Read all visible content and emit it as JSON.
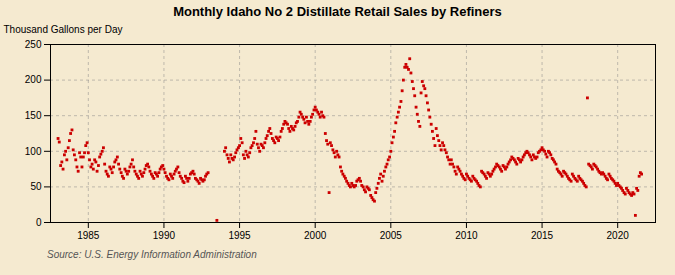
{
  "chart_data": {
    "type": "scatter",
    "title": "Monthly Idaho No 2 Distillate Retail Sales by Refiners",
    "y_label": "Thousand Gallons per Day",
    "annotation": "Source: U.S. Energy Information Administration",
    "color": "#cc0000",
    "marker": "square",
    "grid": true,
    "xlim": [
      1982.5,
      2022.5
    ],
    "xticks": [
      1985,
      1990,
      1995,
      2000,
      2005,
      2010,
      2015,
      2020
    ],
    "ylim": [
      0,
      250
    ],
    "yticks": [
      0,
      50,
      100,
      150,
      200,
      250
    ],
    "x": [
      1983.0,
      1983.08,
      1983.17,
      1983.25,
      1983.33,
      1983.42,
      1983.5,
      1983.58,
      1983.67,
      1983.75,
      1983.83,
      1983.92,
      1984.0,
      1984.08,
      1984.17,
      1984.25,
      1984.33,
      1984.42,
      1984.5,
      1984.58,
      1984.67,
      1984.75,
      1984.83,
      1984.92,
      1985.0,
      1985.08,
      1985.17,
      1985.25,
      1985.33,
      1985.42,
      1985.5,
      1985.58,
      1985.67,
      1985.75,
      1985.83,
      1985.92,
      1986.0,
      1986.08,
      1986.17,
      1986.25,
      1986.33,
      1986.42,
      1986.5,
      1986.58,
      1986.67,
      1986.75,
      1986.83,
      1986.92,
      1987.0,
      1987.08,
      1987.17,
      1987.25,
      1987.33,
      1987.42,
      1987.5,
      1987.58,
      1987.67,
      1987.75,
      1987.83,
      1987.92,
      1988.0,
      1988.08,
      1988.17,
      1988.25,
      1988.33,
      1988.42,
      1988.5,
      1988.58,
      1988.67,
      1988.75,
      1988.83,
      1988.92,
      1989.0,
      1989.08,
      1989.17,
      1989.25,
      1989.33,
      1989.42,
      1989.5,
      1989.58,
      1989.67,
      1989.75,
      1989.83,
      1989.92,
      1990.0,
      1990.08,
      1990.17,
      1990.25,
      1990.33,
      1990.42,
      1990.5,
      1990.58,
      1990.67,
      1990.75,
      1990.83,
      1990.92,
      1991.0,
      1991.08,
      1991.17,
      1991.25,
      1991.33,
      1991.42,
      1991.5,
      1991.58,
      1991.67,
      1991.75,
      1991.83,
      1991.92,
      1992.0,
      1992.08,
      1992.17,
      1992.25,
      1992.33,
      1992.42,
      1992.5,
      1992.58,
      1992.67,
      1992.75,
      1992.83,
      1992.92,
      1993.5,
      1994.0,
      1994.08,
      1994.17,
      1994.25,
      1994.33,
      1994.42,
      1994.5,
      1994.58,
      1994.67,
      1994.75,
      1994.83,
      1994.92,
      1995.0,
      1995.08,
      1995.17,
      1995.25,
      1995.33,
      1995.42,
      1995.5,
      1995.58,
      1995.67,
      1995.75,
      1995.83,
      1995.92,
      1996.0,
      1996.08,
      1996.17,
      1996.25,
      1996.33,
      1996.42,
      1996.5,
      1996.58,
      1996.67,
      1996.75,
      1996.83,
      1996.92,
      1997.0,
      1997.08,
      1997.17,
      1997.25,
      1997.33,
      1997.42,
      1997.5,
      1997.58,
      1997.67,
      1997.75,
      1997.83,
      1997.92,
      1998.0,
      1998.08,
      1998.17,
      1998.25,
      1998.33,
      1998.42,
      1998.5,
      1998.58,
      1998.67,
      1998.75,
      1998.83,
      1998.92,
      1999.0,
      1999.08,
      1999.17,
      1999.25,
      1999.33,
      1999.42,
      1999.5,
      1999.58,
      1999.67,
      1999.75,
      1999.83,
      1999.92,
      2000.0,
      2000.08,
      2000.17,
      2000.25,
      2000.33,
      2000.42,
      2000.5,
      2000.58,
      2000.67,
      2000.75,
      2000.83,
      2000.92,
      2001.0,
      2001.08,
      2001.17,
      2001.25,
      2001.33,
      2001.42,
      2001.5,
      2001.58,
      2001.67,
      2001.75,
      2001.83,
      2001.92,
      2002.0,
      2002.08,
      2002.17,
      2002.25,
      2002.33,
      2002.42,
      2002.5,
      2002.58,
      2002.67,
      2002.75,
      2002.83,
      2002.92,
      2003.0,
      2003.08,
      2003.17,
      2003.25,
      2003.33,
      2003.42,
      2003.5,
      2003.58,
      2003.67,
      2003.75,
      2003.83,
      2003.92,
      2004.0,
      2004.08,
      2004.17,
      2004.25,
      2004.33,
      2004.42,
      2004.5,
      2004.58,
      2004.67,
      2004.75,
      2004.83,
      2004.92,
      2005.0,
      2005.08,
      2005.17,
      2005.25,
      2005.33,
      2005.42,
      2005.5,
      2005.58,
      2005.67,
      2005.75,
      2005.83,
      2005.92,
      2006.0,
      2006.08,
      2006.17,
      2006.25,
      2006.33,
      2006.42,
      2006.5,
      2006.58,
      2006.67,
      2006.75,
      2006.83,
      2006.92,
      2007.0,
      2007.08,
      2007.17,
      2007.25,
      2007.33,
      2007.42,
      2007.5,
      2007.58,
      2007.67,
      2007.75,
      2007.83,
      2007.92,
      2008.0,
      2008.08,
      2008.17,
      2008.25,
      2008.33,
      2008.42,
      2008.5,
      2008.58,
      2008.67,
      2008.75,
      2008.83,
      2008.92,
      2009.0,
      2009.08,
      2009.17,
      2009.25,
      2009.33,
      2009.42,
      2009.5,
      2009.58,
      2009.67,
      2009.75,
      2009.83,
      2009.92,
      2010.0,
      2010.08,
      2010.17,
      2010.25,
      2010.33,
      2010.42,
      2010.5,
      2010.58,
      2010.67,
      2010.75,
      2010.83,
      2010.92,
      2011.0,
      2011.08,
      2011.17,
      2011.25,
      2011.33,
      2011.42,
      2011.5,
      2011.58,
      2011.67,
      2011.75,
      2011.83,
      2011.92,
      2012.0,
      2012.08,
      2012.17,
      2012.25,
      2012.33,
      2012.42,
      2012.5,
      2012.58,
      2012.67,
      2012.75,
      2012.83,
      2012.92,
      2013.0,
      2013.08,
      2013.17,
      2013.25,
      2013.33,
      2013.42,
      2013.5,
      2013.58,
      2013.67,
      2013.75,
      2013.83,
      2013.92,
      2014.0,
      2014.08,
      2014.17,
      2014.25,
      2014.33,
      2014.42,
      2014.5,
      2014.58,
      2014.67,
      2014.75,
      2014.83,
      2014.92,
      2015.0,
      2015.08,
      2015.17,
      2015.25,
      2015.33,
      2015.42,
      2015.5,
      2015.58,
      2015.67,
      2015.75,
      2015.83,
      2015.92,
      2016.0,
      2016.08,
      2016.17,
      2016.25,
      2016.33,
      2016.42,
      2016.5,
      2016.58,
      2016.67,
      2016.75,
      2016.83,
      2016.92,
      2017.0,
      2017.08,
      2017.17,
      2017.25,
      2017.33,
      2017.42,
      2017.5,
      2017.58,
      2017.67,
      2017.75,
      2017.83,
      2017.92,
      2018.0,
      2018.08,
      2018.17,
      2018.25,
      2018.33,
      2018.42,
      2018.5,
      2018.58,
      2018.67,
      2018.75,
      2018.83,
      2018.92,
      2019.0,
      2019.08,
      2019.17,
      2019.25,
      2019.33,
      2019.42,
      2019.5,
      2019.58,
      2019.67,
      2019.75,
      2019.83,
      2019.92,
      2020.0,
      2020.08,
      2020.17,
      2020.25,
      2020.33,
      2020.42,
      2020.5,
      2020.58,
      2020.67,
      2020.75,
      2020.83,
      2020.92,
      2021.0,
      2021.08,
      2021.17,
      2021.25,
      2021.33,
      2021.42,
      2021.5,
      2021.58
    ],
    "values": [
      118,
      113,
      80,
      85,
      75,
      95,
      100,
      88,
      105,
      115,
      125,
      130,
      102,
      95,
      88,
      78,
      72,
      98,
      92,
      78,
      92,
      98,
      108,
      112,
      98,
      88,
      78,
      82,
      75,
      88,
      85,
      72,
      80,
      92,
      96,
      100,
      105,
      82,
      72,
      68,
      65,
      78,
      75,
      70,
      78,
      85,
      88,
      92,
      82,
      75,
      70,
      65,
      62,
      75,
      72,
      68,
      72,
      78,
      82,
      88,
      78,
      72,
      68,
      65,
      62,
      72,
      68,
      65,
      70,
      75,
      80,
      82,
      78,
      72,
      68,
      65,
      62,
      70,
      68,
      65,
      70,
      75,
      78,
      80,
      75,
      70,
      65,
      62,
      60,
      68,
      65,
      62,
      68,
      72,
      75,
      78,
      70,
      65,
      62,
      58,
      56,
      65,
      62,
      58,
      62,
      68,
      70,
      72,
      68,
      62,
      60,
      58,
      55,
      62,
      60,
      58,
      60,
      65,
      68,
      70,
      3,
      100,
      105,
      95,
      90,
      85,
      95,
      90,
      88,
      92,
      98,
      102,
      105,
      108,
      118,
      112,
      95,
      90,
      100,
      95,
      92,
      98,
      105,
      108,
      112,
      118,
      128,
      110,
      105,
      100,
      110,
      108,
      105,
      112,
      118,
      122,
      128,
      132,
      125,
      118,
      115,
      112,
      120,
      118,
      115,
      120,
      128,
      132,
      138,
      142,
      140,
      138,
      132,
      128,
      135,
      132,
      130,
      135,
      140,
      142,
      148,
      155,
      152,
      148,
      145,
      140,
      148,
      142,
      138,
      142,
      148,
      152,
      158,
      162,
      158,
      155,
      152,
      148,
      155,
      150,
      148,
      125,
      115,
      110,
      42,
      112,
      108,
      102,
      98,
      92,
      100,
      95,
      92,
      78,
      72,
      68,
      65,
      62,
      58,
      55,
      52,
      50,
      55,
      52,
      50,
      52,
      58,
      60,
      62,
      58,
      52,
      50,
      46,
      43,
      50,
      48,
      46,
      38,
      35,
      32,
      30,
      42,
      48,
      55,
      62,
      68,
      58,
      65,
      72,
      78,
      82,
      88,
      92,
      100,
      112,
      120,
      128,
      140,
      148,
      155,
      162,
      170,
      185,
      200,
      218,
      222,
      218,
      215,
      230,
      210,
      198,
      188,
      178,
      162,
      152,
      142,
      135,
      182,
      198,
      192,
      188,
      178,
      168,
      158,
      148,
      138,
      128,
      118,
      108,
      132,
      122,
      115,
      108,
      102,
      112,
      108,
      102,
      98,
      92,
      88,
      82,
      88,
      82,
      78,
      72,
      68,
      78,
      75,
      72,
      68,
      65,
      62,
      60,
      68,
      65,
      62,
      60,
      58,
      65,
      62,
      60,
      58,
      55,
      52,
      50,
      72,
      70,
      68,
      65,
      62,
      70,
      68,
      65,
      68,
      72,
      75,
      78,
      82,
      80,
      78,
      75,
      72,
      80,
      78,
      75,
      78,
      82,
      85,
      88,
      92,
      90,
      88,
      85,
      82,
      90,
      88,
      85,
      88,
      92,
      95,
      98,
      100,
      98,
      95,
      92,
      88,
      95,
      92,
      90,
      92,
      98,
      100,
      102,
      105,
      102,
      100,
      96,
      92,
      100,
      98,
      95,
      90,
      88,
      85,
      82,
      75,
      72,
      70,
      68,
      65,
      72,
      70,
      68,
      65,
      62,
      60,
      58,
      68,
      65,
      62,
      60,
      58,
      65,
      62,
      60,
      58,
      55,
      52,
      50,
      175,
      82,
      80,
      78,
      75,
      82,
      80,
      78,
      75,
      72,
      70,
      68,
      70,
      68,
      65,
      62,
      60,
      68,
      65,
      62,
      60,
      58,
      55,
      52,
      55,
      52,
      50,
      48,
      45,
      42,
      40,
      48,
      45,
      42,
      40,
      38,
      42,
      40,
      10,
      48,
      45,
      65,
      70,
      68
    ]
  }
}
